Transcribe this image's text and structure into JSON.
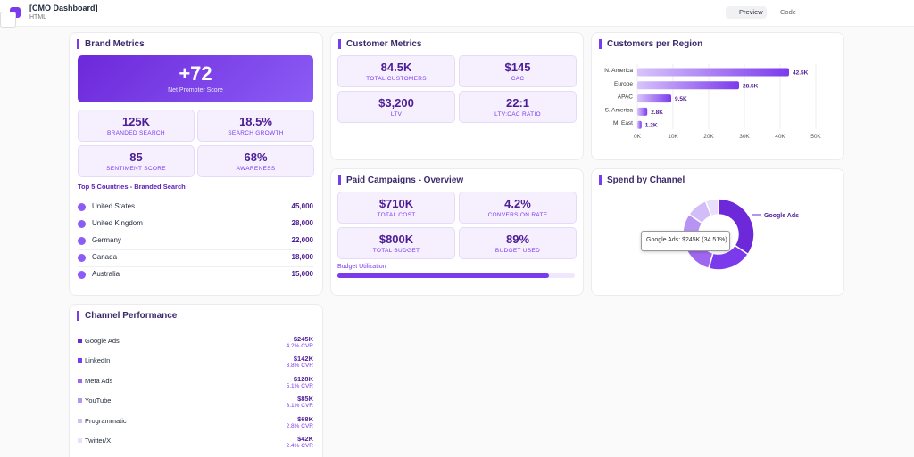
{
  "app": {
    "title": "[CMO Dashboard]",
    "subtitle": "HTML",
    "preview": "Preview",
    "code": "Code"
  },
  "brand_metrics": {
    "title": "Brand Metrics",
    "hero": {
      "value": "+72",
      "label": "Net Promoter Score"
    },
    "stats": [
      {
        "value": "125K",
        "label": "BRANDED SEARCH"
      },
      {
        "value": "18.5%",
        "label": "SEARCH GROWTH"
      },
      {
        "value": "85",
        "label": "SENTIMENT SCORE"
      },
      {
        "value": "68%",
        "label": "AWARENESS"
      }
    ],
    "countries_title": "Top 5 Countries - Branded Search",
    "countries": [
      {
        "name": "United States",
        "value": "45,000"
      },
      {
        "name": "United Kingdom",
        "value": "28,000"
      },
      {
        "name": "Germany",
        "value": "22,000"
      },
      {
        "name": "Canada",
        "value": "18,000"
      },
      {
        "name": "Australia",
        "value": "15,000"
      }
    ]
  },
  "customer_metrics": {
    "title": "Customer Metrics",
    "stats": [
      {
        "value": "84.5K",
        "label": "TOTAL CUSTOMERS"
      },
      {
        "value": "$145",
        "label": "CAC"
      },
      {
        "value": "$3,200",
        "label": "LTV"
      },
      {
        "value": "22:1",
        "label": "LTV:CAC RATIO"
      }
    ]
  },
  "region_chart": {
    "title": "Customers per Region",
    "type": "bar",
    "categories": [
      "N. America",
      "Europe",
      "APAC",
      "S. America",
      "M. East"
    ],
    "values": [
      42.5,
      28.5,
      9.5,
      2.8,
      1.2
    ],
    "value_labels": [
      "42.5K",
      "28.5K",
      "9.5K",
      "2.8K",
      "1.2K"
    ],
    "xlim": [
      0,
      50
    ],
    "xticks": [
      {
        "value": 0,
        "label": "0K"
      },
      {
        "value": 10,
        "label": "10K"
      },
      {
        "value": 20,
        "label": "20K"
      },
      {
        "value": 30,
        "label": "30K"
      },
      {
        "value": 40,
        "label": "40K"
      },
      {
        "value": 50,
        "label": "50K"
      }
    ],
    "color": "#7c3aed"
  },
  "paid_campaigns": {
    "title": "Paid Campaigns - Overview",
    "stats": [
      {
        "value": "$710K",
        "label": "TOTAL COST"
      },
      {
        "value": "4.2%",
        "label": "CONVERSION RATE"
      },
      {
        "value": "$800K",
        "label": "TOTAL BUDGET"
      },
      {
        "value": "89%",
        "label": "BUDGET USED"
      }
    ],
    "budget_label": "Budget Utilization",
    "budget_used": 89
  },
  "spend_chart": {
    "title": "Spend by Channel",
    "type": "pie",
    "values": [
      245,
      142,
      128,
      85,
      68,
      42
    ],
    "colors": [
      "#6d28d9",
      "#7c3aed",
      "#9f67f0",
      "#b794f4",
      "#d3bdf9",
      "#e9defc"
    ],
    "label": "Google Ads",
    "tooltip": "Google Ads: $245K (34.51%)"
  },
  "channel_performance": {
    "title": "Channel Performance",
    "rows": [
      {
        "name": "Google Ads",
        "spend": "$245K",
        "cvr": "4.2% CVR",
        "color": "#6d28d9"
      },
      {
        "name": "LinkedIn",
        "spend": "$142K",
        "cvr": "3.8% CVR",
        "color": "#7c3aed"
      },
      {
        "name": "Meta Ads",
        "spend": "$128K",
        "cvr": "5.1% CVR",
        "color": "#9f67f0"
      },
      {
        "name": "YouTube",
        "spend": "$85K",
        "cvr": "3.1% CVR",
        "color": "#b794f4"
      },
      {
        "name": "Programmatic",
        "spend": "$68K",
        "cvr": "2.8% CVR",
        "color": "#d3bdf9"
      },
      {
        "name": "Twitter/X",
        "spend": "$42K",
        "cvr": "2.4% CVR",
        "color": "#e9defc"
      }
    ]
  }
}
